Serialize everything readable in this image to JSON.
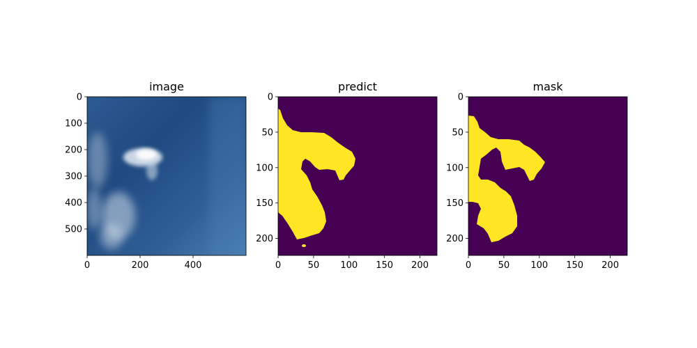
{
  "chart_data": [
    {
      "type": "heatmap",
      "title": "image",
      "x_ticks": [
        0,
        200,
        400
      ],
      "y_ticks": [
        0,
        100,
        200,
        300,
        400,
        500
      ],
      "x_range": [
        0,
        600
      ],
      "y_range": [
        0,
        600
      ],
      "content": "photograph of a blue sky with a wispy white cloud on the left",
      "colors": {
        "sky_dark": "#1f4a80",
        "sky_mid": "#2f5e96",
        "sky_light": "#4a7fb3",
        "cloud": "#e8eef5"
      }
    },
    {
      "type": "heatmap",
      "title": "predict",
      "x_ticks": [
        0,
        50,
        100,
        150,
        200
      ],
      "y_ticks": [
        0,
        50,
        100,
        150,
        200
      ],
      "x_range": [
        0,
        224
      ],
      "y_range": [
        0,
        224
      ],
      "content": "binary segmentation mask",
      "colors": {
        "background": "#440154",
        "foreground": "#fde725"
      }
    },
    {
      "type": "heatmap",
      "title": "mask",
      "x_ticks": [
        0,
        50,
        100,
        150,
        200
      ],
      "y_ticks": [
        0,
        50,
        100,
        150,
        200
      ],
      "x_range": [
        0,
        224
      ],
      "y_range": [
        0,
        224
      ],
      "content": "binary ground-truth mask",
      "colors": {
        "background": "#440154",
        "foreground": "#fde725"
      }
    }
  ]
}
